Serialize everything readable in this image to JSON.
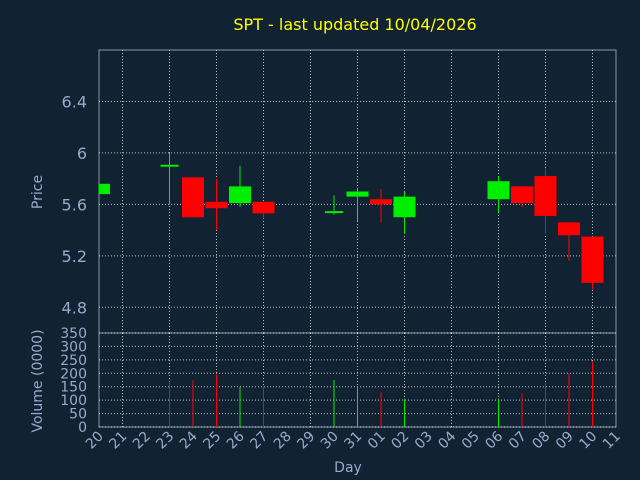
{
  "chart_data": [
    {
      "type": "candlestick",
      "title": "SPT - last updated 10/04/2026",
      "ylabel": "Price",
      "ylim": [
        4.6,
        6.8
      ],
      "yticks": [
        "4.8",
        "5.2",
        "5.6",
        "6",
        "6.4"
      ],
      "x_labels": [
        "20",
        "21",
        "22",
        "23",
        "24",
        "25",
        "26",
        "27",
        "28",
        "29",
        "30",
        "31",
        "01",
        "02",
        "03",
        "04",
        "05",
        "06",
        "07",
        "08",
        "09",
        "10",
        "11"
      ],
      "candles": [
        {
          "day": "20",
          "open": 5.68,
          "close": 5.76,
          "high": 5.76,
          "low": 5.68
        },
        {
          "day": "23",
          "open": 5.9,
          "close": 5.9,
          "high": 6.0,
          "low": 5.6
        },
        {
          "day": "24",
          "open": 5.81,
          "close": 5.5,
          "high": 5.81,
          "low": 5.5
        },
        {
          "day": "25",
          "open": 5.62,
          "close": 5.57,
          "high": 5.8,
          "low": 5.4
        },
        {
          "day": "26",
          "open": 5.61,
          "close": 5.74,
          "high": 5.9,
          "low": 5.58
        },
        {
          "day": "27",
          "open": 5.62,
          "close": 5.53,
          "high": 5.62,
          "low": 5.49
        },
        {
          "day": "30",
          "open": 5.54,
          "close": 5.54,
          "high": 5.67,
          "low": 5.52
        },
        {
          "day": "31",
          "open": 5.66,
          "close": 5.7,
          "high": 5.73,
          "low": 5.47
        },
        {
          "day": "01",
          "open": 5.64,
          "close": 5.6,
          "high": 5.72,
          "low": 5.46
        },
        {
          "day": "02",
          "open": 5.5,
          "close": 5.66,
          "high": 5.7,
          "low": 5.37
        },
        {
          "day": "06",
          "open": 5.64,
          "close": 5.78,
          "high": 5.82,
          "low": 5.53
        },
        {
          "day": "07",
          "open": 5.74,
          "close": 5.61,
          "high": 5.74,
          "low": 5.58
        },
        {
          "day": "08",
          "open": 5.82,
          "close": 5.51,
          "high": 5.88,
          "low": 5.37
        },
        {
          "day": "09",
          "open": 5.46,
          "close": 5.36,
          "high": 5.46,
          "low": 5.16
        },
        {
          "day": "10",
          "open": 5.35,
          "close": 4.99,
          "high": 5.35,
          "low": 4.94
        }
      ]
    },
    {
      "type": "bar",
      "ylabel": "Volume (0000)",
      "xlabel": "Day",
      "ylim": [
        0,
        350
      ],
      "yticks": [
        "0",
        "50",
        "100",
        "150",
        "200",
        "250",
        "300",
        "350"
      ],
      "values": [
        {
          "day": "23",
          "volume": 170,
          "direction": "down"
        },
        {
          "day": "24",
          "volume": 175,
          "direction": "down"
        },
        {
          "day": "25",
          "volume": 195,
          "direction": "down"
        },
        {
          "day": "26",
          "volume": 150,
          "direction": "up"
        },
        {
          "day": "27",
          "volume": 150,
          "direction": "down"
        },
        {
          "day": "30",
          "volume": 175,
          "direction": "up"
        },
        {
          "day": "31",
          "volume": 150,
          "direction": "up"
        },
        {
          "day": "01",
          "volume": 130,
          "direction": "down"
        },
        {
          "day": "02",
          "volume": 105,
          "direction": "up"
        },
        {
          "day": "06",
          "volume": 105,
          "direction": "up"
        },
        {
          "day": "07",
          "volume": 125,
          "direction": "down"
        },
        {
          "day": "08",
          "volume": 165,
          "direction": "down"
        },
        {
          "day": "09",
          "volume": 200,
          "direction": "down"
        },
        {
          "day": "10",
          "volume": 245,
          "direction": "down"
        }
      ]
    }
  ],
  "colors": {
    "background": "#112233",
    "title": "#ffff00",
    "axis_text": "#99aacc",
    "grid": "#ffffff",
    "up": "#00ee00",
    "down": "#ff0000"
  }
}
